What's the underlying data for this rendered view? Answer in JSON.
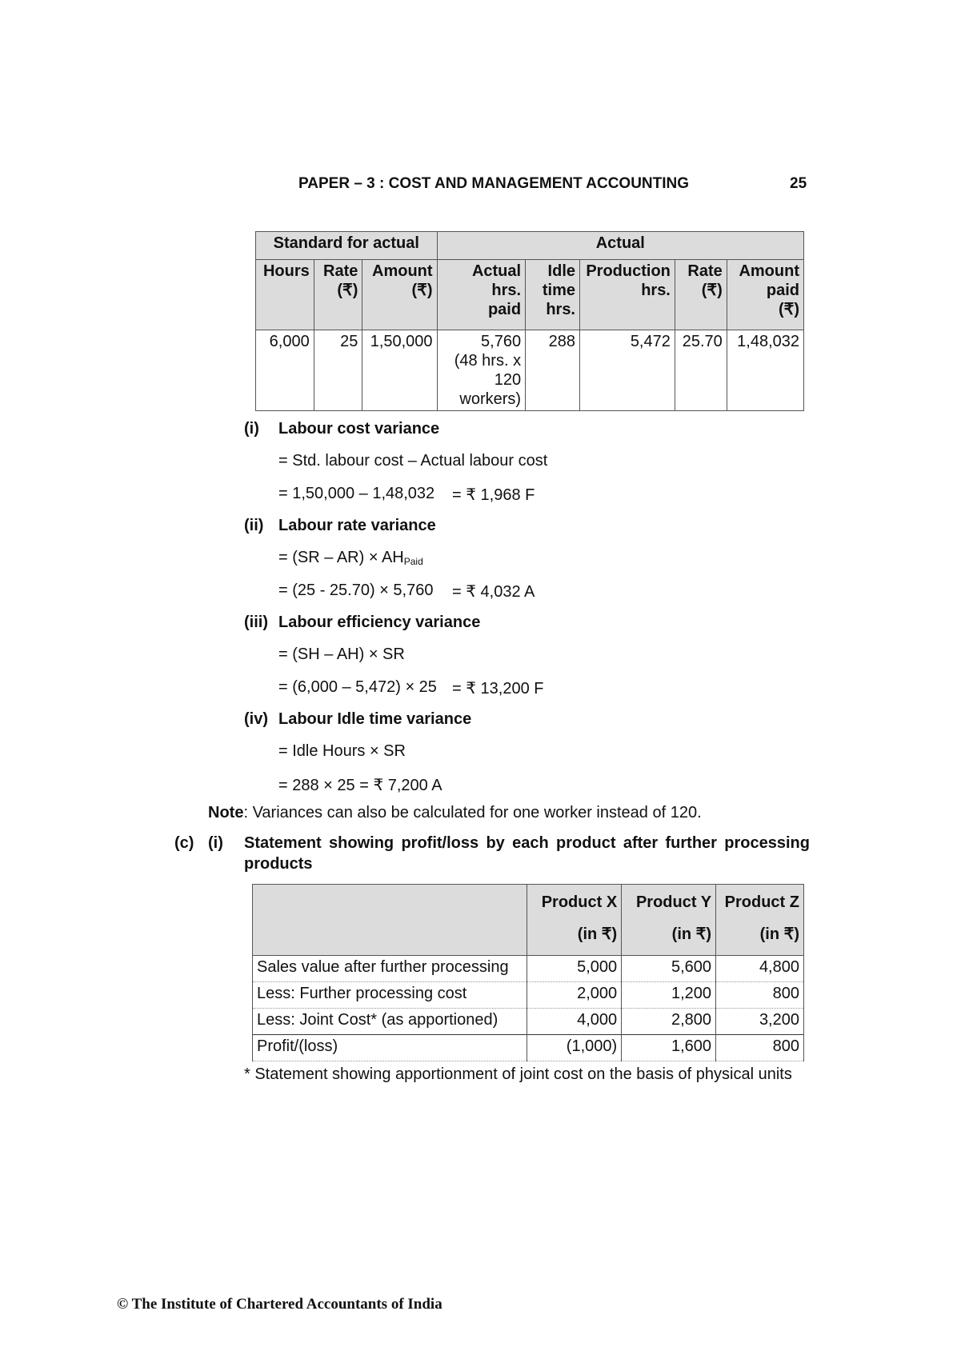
{
  "header": {
    "title": "PAPER – 3 : COST AND MANAGEMENT ACCOUNTING",
    "page_number": "25"
  },
  "table1": {
    "group_headers": [
      "Standard for actual",
      "Actual"
    ],
    "columns": [
      [
        "Hours"
      ],
      [
        "Rate",
        "(₹)"
      ],
      [
        "Amount",
        "(₹)"
      ],
      [
        "Actual hrs.",
        "paid"
      ],
      [
        "Idle",
        "time",
        "hrs."
      ],
      [
        "Production",
        "hrs."
      ],
      [
        "Rate",
        "(₹)"
      ],
      [
        "Amount",
        "paid",
        "(₹)"
      ]
    ],
    "row": [
      [
        "6,000"
      ],
      [
        "25"
      ],
      [
        "1,50,000"
      ],
      [
        "5,760",
        "(48 hrs. x 120",
        "workers)"
      ],
      [
        "288"
      ],
      [
        "5,472"
      ],
      [
        "25.70"
      ],
      [
        "1,48,032"
      ]
    ]
  },
  "items": [
    {
      "num": "(i)",
      "title": "Labour cost variance",
      "lines": [
        "= Std. labour cost – Actual labour cost"
      ],
      "calc": "= 1,50,000 – 1,48,032",
      "result": "= ₹ 1,968 F"
    },
    {
      "num": "(ii)",
      "title": "Labour rate variance",
      "formula": "= (SR – AR) × AH",
      "formula_sub": "Paid",
      "calc": "= (25 - 25.70) × 5,760",
      "result": "= ₹ 4,032 A"
    },
    {
      "num": "(iii)",
      "title": "Labour efficiency variance",
      "lines": [
        "= (SH – AH) × SR"
      ],
      "calc": "= (6,000 – 5,472) × 25",
      "result": "= ₹ 13,200 F"
    },
    {
      "num": "(iv)",
      "title": "Labour Idle time variance",
      "lines": [
        "= Idle Hours × SR"
      ],
      "calc": "= 288 × 25 = ₹ 7,200 A",
      "result": ""
    }
  ],
  "note": {
    "label": "Note",
    "text": ": Variances can also be calculated for one worker instead of 120."
  },
  "section_c": {
    "num": "(c)",
    "sub": "(i)",
    "title_line1": "Statement showing profit/loss by each product after further processing",
    "title_line2": "products"
  },
  "table2": {
    "headers": [
      [
        "",
        ""
      ],
      [
        "Product X",
        "(in ₹)"
      ],
      [
        "Product Y",
        "(in ₹)"
      ],
      [
        "Product Z",
        "(in ₹)"
      ]
    ],
    "rows": [
      [
        "Sales value after further processing",
        "5,000",
        "5,600",
        "4,800"
      ],
      [
        "Less: Further processing cost",
        "2,000",
        "1,200",
        "800"
      ],
      [
        "Less: Joint Cost* (as apportioned)",
        "4,000",
        "2,800",
        "3,200"
      ],
      [
        "Profit/(loss)",
        "(1,000)",
        "1,600",
        "800"
      ]
    ]
  },
  "footnote": "* Statement showing apportionment of joint cost on the basis of physical units",
  "footer": "© The Institute of Chartered Accountants of India"
}
